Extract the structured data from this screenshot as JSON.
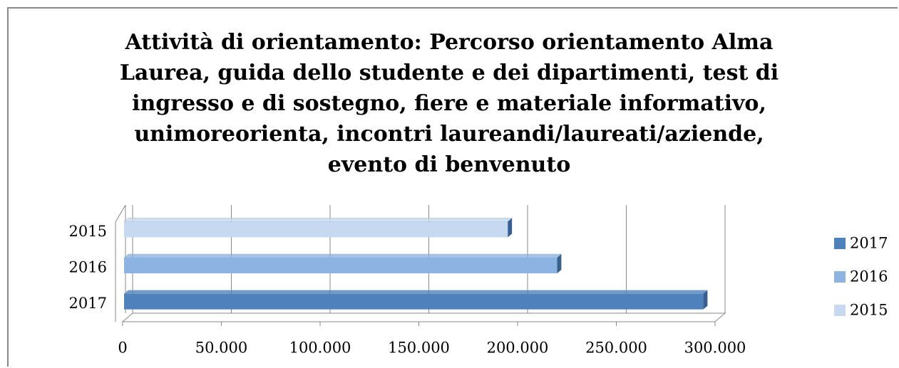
{
  "chart_data": {
    "type": "bar3d_horizontal",
    "title": "Attività di orientamento: Percorso orientamento Alma Laurea, guida dello studente e dei dipartimenti, test di ingresso e di sostegno, fiere e materiale informativo, unimoreorienta, incontri laureandi/laureati/aziende, evento di benvenuto",
    "categories": [
      "2017",
      "2016",
      "2015"
    ],
    "values": [
      294000,
      220000,
      195000
    ],
    "colors": [
      "#4f81bd",
      "#8db3e2",
      "#c6d9f1"
    ],
    "xlim": [
      0,
      300000
    ],
    "xticks": [
      0,
      {
        "value": 50000,
        "label": "50.000"
      },
      {
        "value": 100000,
        "label": "100.000"
      },
      {
        "value": 150000,
        "label": "150.000"
      },
      {
        "value": 200000,
        "label": "200.000"
      },
      {
        "value": 250000,
        "label": "250.000"
      },
      {
        "value": 300000,
        "label": "300.000"
      }
    ],
    "grid": true,
    "legend": "right"
  }
}
